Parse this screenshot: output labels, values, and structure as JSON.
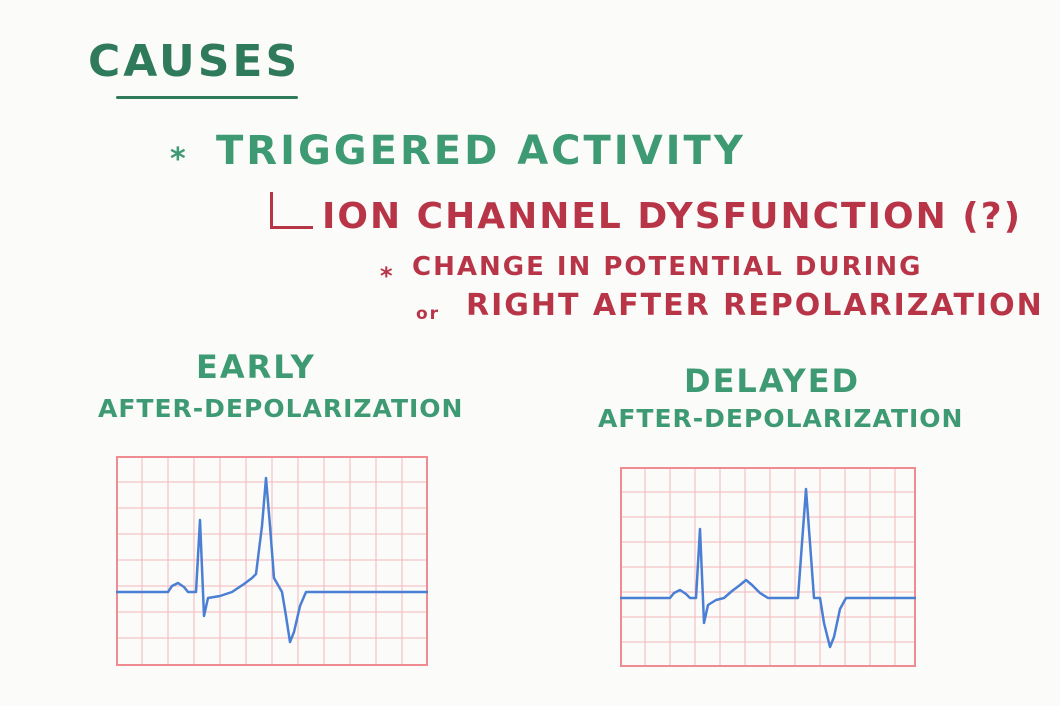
{
  "title": "Causes",
  "bullet": {
    "star": "*",
    "text": "Triggered Activity"
  },
  "sub_item": {
    "text": "Ion Channel Dysfunction (?)"
  },
  "note": {
    "star": "*",
    "line1": "Change in Potential During",
    "line2_prefix": "or",
    "line2": "Right After Repolarization"
  },
  "early": {
    "title": "Early",
    "subtitle": "After-Depolarization"
  },
  "delayed": {
    "title": "Delayed",
    "subtitle": "After-Depolarization"
  },
  "colors": {
    "heading_green": "#2f7a5a",
    "text_green": "#3e9a72",
    "text_red": "#b83548",
    "grid_pink": "#ef9aa0",
    "trace_blue": "#4a7fd4"
  },
  "icons": {
    "bullet": "asterisk-icon",
    "sub_bracket": "l-bracket-icon"
  }
}
